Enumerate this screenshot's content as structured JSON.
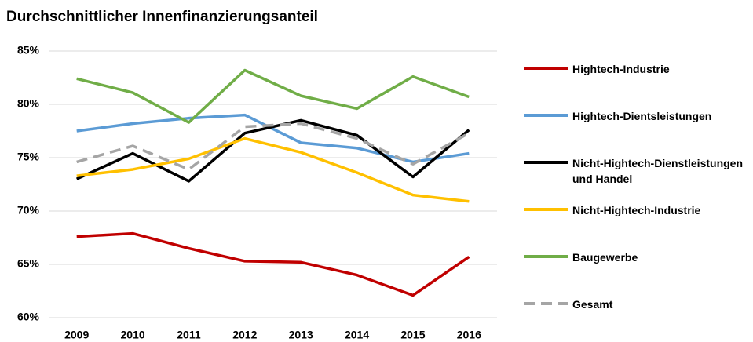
{
  "chart_data": {
    "type": "line",
    "title": "Durchschnittlicher Innenfinanzierungsanteil",
    "categories": [
      "2009",
      "2010",
      "2011",
      "2012",
      "2013",
      "2014",
      "2015",
      "2016"
    ],
    "series": [
      {
        "name": "Hightech-Industrie",
        "color": "#c00000",
        "values": [
          67.6,
          67.9,
          66.5,
          65.3,
          65.2,
          64.0,
          62.1,
          65.7
        ]
      },
      {
        "name": "Hightech-Dientsleistungen",
        "color": "#5b9bd5",
        "values": [
          77.5,
          78.2,
          78.7,
          79.0,
          76.4,
          75.9,
          74.6,
          75.4
        ]
      },
      {
        "name": "Nicht-Hightech-Dienstleistungen und Handel",
        "color": "#000000",
        "values": [
          73.0,
          75.4,
          72.8,
          77.3,
          78.5,
          77.1,
          73.2,
          77.6
        ]
      },
      {
        "name": "Nicht-Hightech-Industrie",
        "color": "#ffc000",
        "values": [
          73.3,
          73.9,
          74.9,
          76.8,
          75.5,
          73.6,
          71.5,
          70.9
        ]
      },
      {
        "name": "Baugewerbe",
        "color": "#70ad47",
        "values": [
          82.4,
          81.1,
          78.3,
          83.2,
          80.8,
          79.6,
          82.6,
          80.7
        ]
      },
      {
        "name": "Gesamt",
        "color": "#a5a5a5",
        "linestyle": "dashed",
        "values": [
          74.6,
          76.1,
          73.9,
          77.9,
          78.2,
          76.8,
          74.4,
          77.3
        ]
      }
    ],
    "ylim": [
      60,
      85
    ],
    "yticks": [
      {
        "value": 60,
        "label": "60%"
      },
      {
        "value": 65,
        "label": "65%"
      },
      {
        "value": 70,
        "label": "70%"
      },
      {
        "value": 75,
        "label": "75%"
      },
      {
        "value": 80,
        "label": "80%"
      },
      {
        "value": 85,
        "label": "85%"
      }
    ],
    "grid": true,
    "legend": "right"
  }
}
